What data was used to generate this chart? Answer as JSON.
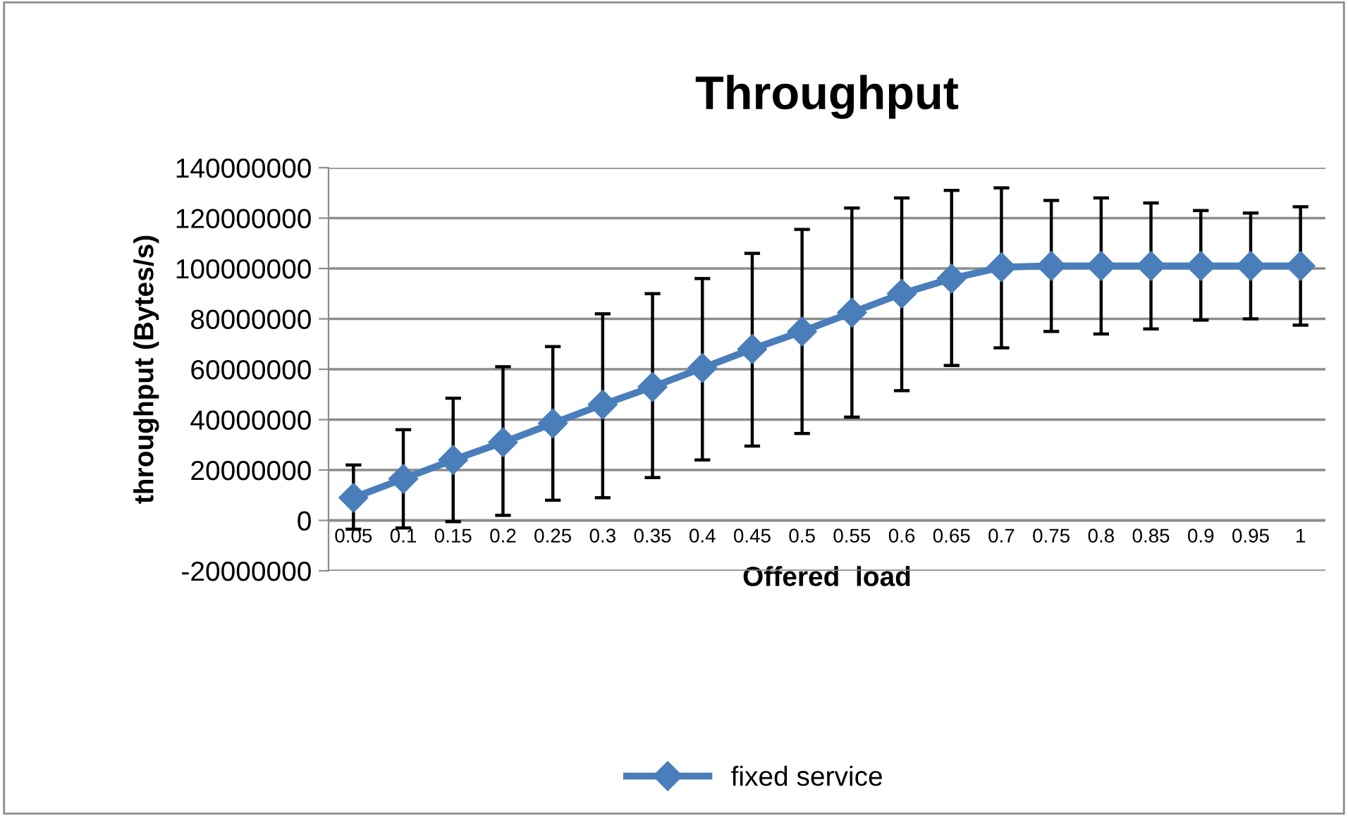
{
  "chart_data": {
    "type": "line",
    "title": "Throughput",
    "xlabel": "Offered  load",
    "ylabel": "throughput (Bytes/s)",
    "categories": [
      "0.05",
      "0.1",
      "0.15",
      "0.2",
      "0.25",
      "0.3",
      "0.35",
      "0.4",
      "0.45",
      "0.5",
      "0.55",
      "0.6",
      "0.65",
      "0.7",
      "0.75",
      "0.8",
      "0.85",
      "0.9",
      "0.95",
      "1"
    ],
    "series": [
      {
        "name": "fixed service",
        "color": "#4a7ebb",
        "values": [
          9000000,
          16500000,
          24000000,
          31000000,
          38500000,
          46000000,
          53000000,
          60500000,
          68000000,
          75000000,
          82500000,
          90000000,
          96000000,
          100500000,
          101000000,
          101000000,
          101000000,
          101000000,
          101000000,
          101000000
        ],
        "errors": [
          [
            -3500000,
            22000000
          ],
          [
            -3000000,
            36000000
          ],
          [
            -500000,
            48500000
          ],
          [
            2000000,
            61000000
          ],
          [
            8000000,
            69000000
          ],
          [
            9000000,
            82000000
          ],
          [
            17000000,
            90000000
          ],
          [
            24000000,
            96000000
          ],
          [
            29500000,
            106000000
          ],
          [
            34500000,
            115500000
          ],
          [
            41000000,
            124000000
          ],
          [
            51500000,
            128000000
          ],
          [
            61500000,
            131000000
          ],
          [
            68500000,
            132000000
          ],
          [
            75000000,
            127000000
          ],
          [
            74000000,
            128000000
          ],
          [
            76000000,
            126000000
          ],
          [
            79500000,
            123000000
          ],
          [
            80000000,
            122000000
          ],
          [
            77500000,
            124500000
          ]
        ]
      }
    ],
    "ylim": [
      -20000000,
      140000000
    ],
    "yticks": [
      -20000000,
      0,
      20000000,
      40000000,
      60000000,
      80000000,
      100000000,
      120000000,
      140000000
    ],
    "grid": "y",
    "legend": "bottom",
    "marker": "diamond",
    "line_style": "solid"
  }
}
